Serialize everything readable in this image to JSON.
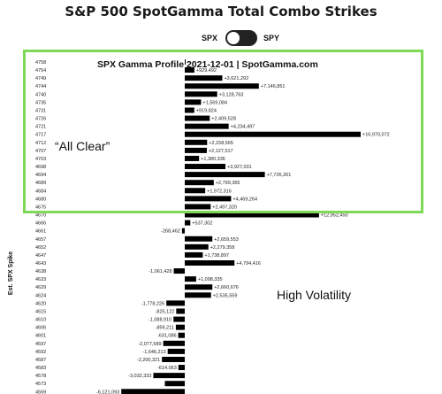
{
  "header": {
    "title": "S&P 500 SpotGamma Total Combo Strikes",
    "toggle_left": "SPX",
    "toggle_right": "SPY"
  },
  "annotations": {
    "all_clear": "“All Clear”",
    "high_volatility": "High Volatility",
    "y_axis_label": "Est. SPX Spike"
  },
  "colors": {
    "bar": "#000000",
    "highlight": "#7ed957"
  },
  "chart_data": {
    "type": "bar",
    "orientation": "horizontal",
    "title": "SPX Gamma Profile 2021-12-01 | SpotGamma.com",
    "categories": [
      "4758",
      "4754",
      "4749",
      "4744",
      "4740",
      "4735",
      "4731",
      "4726",
      "4721",
      "4717",
      "4712",
      "4707",
      "4703",
      "4698",
      "4694",
      "4689",
      "4684",
      "4680",
      "4675",
      "4670",
      "4666",
      "4661",
      "4657",
      "4652",
      "4647",
      "4643",
      "4638",
      "4633",
      "4629",
      "4624",
      "4620",
      "4615",
      "4610",
      "4606",
      "4601",
      "4597",
      "4592",
      "4587",
      "4583",
      "4578",
      "4573",
      "4569"
    ],
    "values": [
      50000,
      929492,
      3621292,
      7146851,
      3128763,
      1569084,
      919824,
      2409528,
      4234497,
      16970072,
      2158565,
      2127517,
      1380336,
      3927031,
      7726261,
      2799365,
      1972316,
      4469264,
      2497320,
      12952450,
      537302,
      -268462,
      2659553,
      2279358,
      1738897,
      4794416,
      -1061428,
      1098335,
      2660676,
      2535559,
      -1778226,
      -825122,
      -1088910,
      -859211,
      -631086,
      -2077589,
      -1646213,
      -2200321,
      -614063,
      -3032333,
      -1920000,
      -6121093
    ],
    "labels": [
      "",
      "+929,492",
      "+3,621,292",
      "+7,146,851",
      "+3,128,763",
      "+1,569,084",
      "+919,824",
      "+2,409,528",
      "+4,234,497",
      "+16,970,072",
      "+2,158,565",
      "+2,127,517",
      "+1,380,336",
      "+3,927,031",
      "+7,726,261",
      "+2,799,365",
      "+1,972,316",
      "+4,469,264",
      "+2,497,320",
      "+12,952,450",
      "+537,302",
      "-268,462",
      "+2,659,553",
      "+2,279,358",
      "+1,738,897",
      "+4,794,416",
      "-1,061,428",
      "+1,098,335",
      "+2,660,676",
      "+2,535,559",
      "-1,778,226",
      "-825,122",
      "-1,088,910",
      "-859,211",
      "-631,086",
      "-2,077,589",
      "-1,646,213",
      "-2,200,321",
      "-614,063",
      "-3,032,333",
      "",
      "-6,121,093"
    ],
    "xlim": [
      -8000000,
      18500000
    ]
  }
}
